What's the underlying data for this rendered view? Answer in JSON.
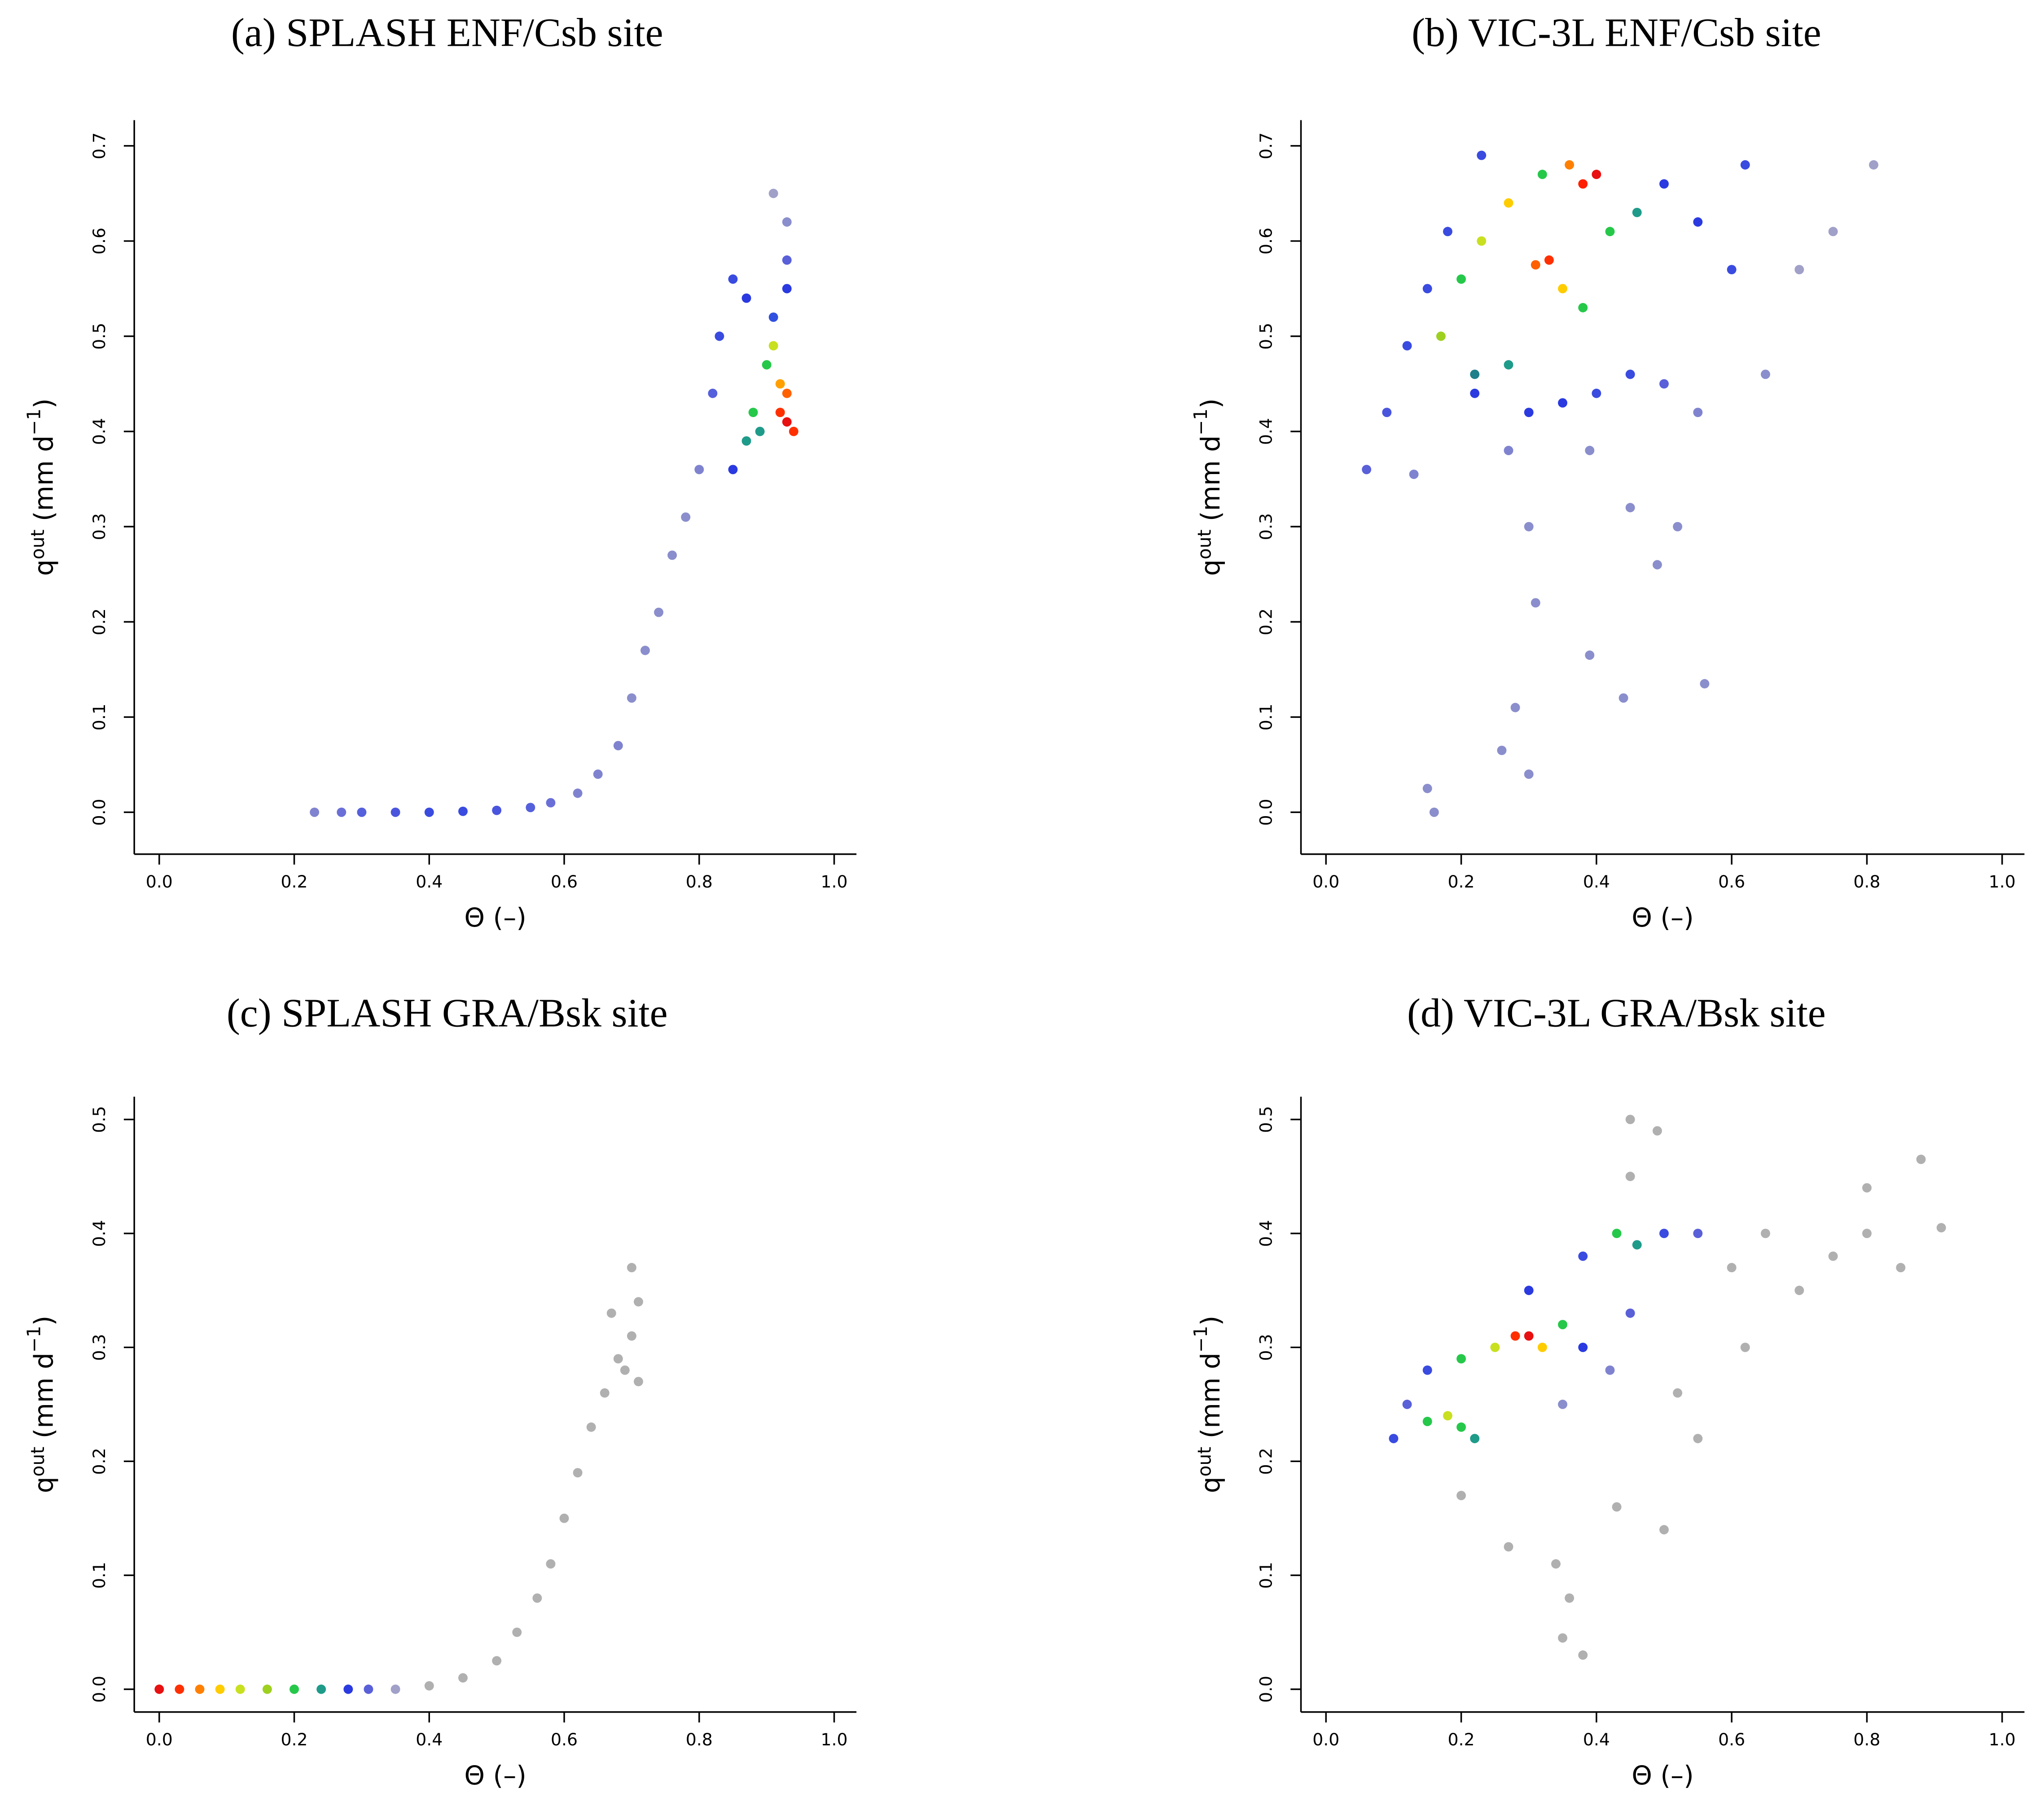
{
  "chart_data": [
    {
      "type": "scatter",
      "title": "(a) SPLASH ENF/Csb site",
      "xlabel": "Θ (–)",
      "ylabel": [
        "q",
        "out",
        " (mm d",
        "−1",
        ")"
      ],
      "xlim": [
        -0.037,
        1.033
      ],
      "ylim": [
        -0.044,
        0.727
      ],
      "xticks": [
        {
          "value": 0,
          "label": "0.0"
        },
        0.2,
        0.4,
        0.6,
        0.8,
        {
          "value": 1,
          "label": "1.0"
        }
      ],
      "yticks": [
        {
          "value": 0,
          "label": "0.0"
        },
        0.1,
        0.2,
        0.3,
        0.4,
        0.5,
        0.6,
        0.7
      ],
      "x": [
        0.23,
        0.27,
        0.3,
        0.35,
        0.4,
        0.45,
        0.5,
        0.55,
        0.58,
        0.62,
        0.65,
        0.68,
        0.7,
        0.72,
        0.74,
        0.76,
        0.78,
        0.8,
        0.82,
        0.83,
        0.85,
        0.87,
        0.85,
        0.87,
        0.88,
        0.9,
        0.91,
        0.92,
        0.92,
        0.93,
        0.93,
        0.91,
        0.93,
        0.93,
        0.91,
        0.93,
        0.89,
        0.94
      ],
      "values": [
        0,
        0,
        0,
        0,
        0,
        0.001,
        0.002,
        0.005,
        0.01,
        0.02,
        0.04,
        0.07,
        0.12,
        0.17,
        0.21,
        0.27,
        0.31,
        0.36,
        0.44,
        0.5,
        0.56,
        0.54,
        0.36,
        0.39,
        0.42,
        0.47,
        0.49,
        0.45,
        0.42,
        0.41,
        0.44,
        0.52,
        0.55,
        0.58,
        0.65,
        0.62,
        0.4,
        0.4
      ],
      "colors": [
        "#7f83cf",
        "#6a6fd8",
        "#5560dc",
        "#4a55dd",
        "#3a4be0",
        "#3a4be0",
        "#4a55dd",
        "#5560dc",
        "#6a6fd8",
        "#7f83cf",
        "#7f83cf",
        "#7f83cf",
        "#8a8ecc",
        "#8a8ecc",
        "#8a8ecc",
        "#8a8ecc",
        "#8a8ecc",
        "#7f83cf",
        "#5560dc",
        "#3a4be0",
        "#3a4be0",
        "#2a3ae0",
        "#2a3ae0",
        "#1f9b8a",
        "#26c84a",
        "#26c84a",
        "#c8e020",
        "#ffa000",
        "#ff3000",
        "#e81010",
        "#ff6000",
        "#3050e0",
        "#2a3ae0",
        "#5a60d8",
        "#a0a0c8",
        "#8a8ecc",
        "#1f9b8a",
        "#ff3000"
      ]
    },
    {
      "type": "scatter",
      "title": "(b) VIC-3L ENF/Csb site",
      "xlabel": "Θ (–)",
      "ylabel": [
        "q",
        "out",
        " (mm d",
        "−1",
        ")"
      ],
      "xlim": [
        -0.037,
        1.033
      ],
      "ylim": [
        -0.044,
        0.727
      ],
      "xticks": [
        {
          "value": 0,
          "label": "0.0"
        },
        0.2,
        0.4,
        0.6,
        0.8,
        {
          "value": 1,
          "label": "1.0"
        }
      ],
      "yticks": [
        {
          "value": 0,
          "label": "0.0"
        },
        0.1,
        0.2,
        0.3,
        0.4,
        0.5,
        0.6,
        0.7
      ],
      "x": [
        0.06,
        0.09,
        0.12,
        0.15,
        0.18,
        0.23,
        0.17,
        0.2,
        0.23,
        0.27,
        0.32,
        0.38,
        0.4,
        0.36,
        0.33,
        0.31,
        0.35,
        0.38,
        0.42,
        0.46,
        0.5,
        0.55,
        0.6,
        0.62,
        0.22,
        0.27,
        0.22,
        0.3,
        0.35,
        0.4,
        0.45,
        0.5,
        0.55,
        0.65,
        0.7,
        0.75,
        0.81,
        0.13,
        0.27,
        0.3,
        0.39,
        0.45,
        0.49,
        0.31,
        0.39,
        0.44,
        0.56,
        0.28,
        0.26,
        0.3,
        0.15,
        0.16,
        0.52
      ],
      "values": [
        0.36,
        0.42,
        0.49,
        0.55,
        0.61,
        0.69,
        0.5,
        0.56,
        0.6,
        0.64,
        0.67,
        0.66,
        0.67,
        0.68,
        0.58,
        0.575,
        0.55,
        0.53,
        0.61,
        0.63,
        0.66,
        0.62,
        0.57,
        0.68,
        0.46,
        0.47,
        0.44,
        0.42,
        0.43,
        0.44,
        0.46,
        0.45,
        0.42,
        0.46,
        0.57,
        0.61,
        0.68,
        0.355,
        0.38,
        0.3,
        0.38,
        0.32,
        0.26,
        0.22,
        0.165,
        0.12,
        0.135,
        0.11,
        0.065,
        0.04,
        0.025,
        0.0,
        0.3
      ],
      "colors": [
        "#5a60d8",
        "#4a55dd",
        "#3a4be0",
        "#3a4be0",
        "#3a4be0",
        "#3a4be0",
        "#9ed020",
        "#26c84a",
        "#c8e020",
        "#ffcc00",
        "#26c84a",
        "#ff2000",
        "#e81010",
        "#ff8000",
        "#ff3000",
        "#ff6000",
        "#ffcc00",
        "#26c84a",
        "#26c84a",
        "#1f9b8a",
        "#2a3ae0",
        "#2a3ae0",
        "#3a4be0",
        "#3a4be0",
        "#1f7f8a",
        "#1f9b8a",
        "#2a3ae0",
        "#2a3ae0",
        "#2a3ae0",
        "#3a4be0",
        "#3a4be0",
        "#5a60d8",
        "#7f83cf",
        "#8a8ecc",
        "#a0a0c8",
        "#a0a0c8",
        "#a0a0c8",
        "#7f83cf",
        "#7f83cf",
        "#8a8ecc",
        "#8a8ecc",
        "#8a8ecc",
        "#8a8ecc",
        "#8a8ecc",
        "#8a8ecc",
        "#8a8ecc",
        "#8a8ecc",
        "#8a8ecc",
        "#8a8ecc",
        "#8a8ecc",
        "#8a8ecc",
        "#8a8ecc",
        "#8a8ecc"
      ]
    },
    {
      "type": "scatter",
      "title": "(c) SPLASH GRA/Bsk site",
      "xlabel": "Θ (–)",
      "ylabel": [
        "q",
        "out",
        " (mm d",
        "−1",
        ")"
      ],
      "xlim": [
        -0.037,
        1.033
      ],
      "ylim": [
        -0.02,
        0.52
      ],
      "xticks": [
        {
          "value": 0,
          "label": "0.0"
        },
        0.2,
        0.4,
        0.6,
        0.8,
        {
          "value": 1,
          "label": "1.0"
        }
      ],
      "yticks": [
        {
          "value": 0,
          "label": "0.0"
        },
        0.1,
        0.2,
        0.3,
        0.4,
        0.5
      ],
      "x": [
        0.0,
        0.03,
        0.06,
        0.09,
        0.12,
        0.16,
        0.2,
        0.24,
        0.28,
        0.31,
        0.35,
        0.4,
        0.45,
        0.5,
        0.53,
        0.56,
        0.58,
        0.6,
        0.62,
        0.64,
        0.66,
        0.68,
        0.7,
        0.71,
        0.71,
        0.7,
        0.67,
        0.69
      ],
      "values": [
        0,
        0,
        0,
        0,
        0,
        0,
        0,
        0,
        0,
        0,
        0,
        0.003,
        0.01,
        0.025,
        0.05,
        0.08,
        0.11,
        0.15,
        0.19,
        0.23,
        0.26,
        0.29,
        0.31,
        0.27,
        0.34,
        0.37,
        0.33,
        0.28
      ],
      "colors": [
        "#e81010",
        "#ff3000",
        "#ff8000",
        "#ffcc00",
        "#c8e020",
        "#9ed020",
        "#26c84a",
        "#1f9b8a",
        "#2a3ae0",
        "#5a60d8",
        "#a0a0c8",
        "#b0b0b0",
        "#b0b0b0",
        "#b0b0b0",
        "#b0b0b0",
        "#b0b0b0",
        "#b0b0b0",
        "#b0b0b0",
        "#b0b0b0",
        "#b0b0b0",
        "#b0b0b0",
        "#b0b0b0",
        "#b0b0b0",
        "#b0b0b0",
        "#b0b0b0",
        "#b0b0b0",
        "#b0b0b0",
        "#b0b0b0"
      ]
    },
    {
      "type": "scatter",
      "title": "(d) VIC-3L GRA/Bsk site",
      "xlabel": "Θ (–)",
      "ylabel": [
        "q",
        "out",
        " (mm d",
        "−1",
        ")"
      ],
      "xlim": [
        -0.037,
        1.033
      ],
      "ylim": [
        -0.02,
        0.52
      ],
      "xticks": [
        {
          "value": 0,
          "label": "0.0"
        },
        0.2,
        0.4,
        0.6,
        0.8,
        {
          "value": 1,
          "label": "1.0"
        }
      ],
      "yticks": [
        {
          "value": 0,
          "label": "0.0"
        },
        0.1,
        0.2,
        0.3,
        0.4,
        0.5
      ],
      "x": [
        0.1,
        0.12,
        0.15,
        0.18,
        0.2,
        0.22,
        0.15,
        0.2,
        0.25,
        0.28,
        0.3,
        0.32,
        0.35,
        0.38,
        0.3,
        0.38,
        0.43,
        0.46,
        0.5,
        0.55,
        0.45,
        0.42,
        0.35,
        0.45,
        0.49,
        0.45,
        0.6,
        0.65,
        0.7,
        0.75,
        0.8,
        0.85,
        0.88,
        0.91,
        0.8,
        0.62,
        0.55,
        0.2,
        0.27,
        0.34,
        0.36,
        0.35,
        0.38,
        0.43,
        0.5,
        0.52
      ],
      "values": [
        0.22,
        0.25,
        0.235,
        0.24,
        0.23,
        0.22,
        0.28,
        0.29,
        0.3,
        0.31,
        0.31,
        0.3,
        0.32,
        0.3,
        0.35,
        0.38,
        0.4,
        0.39,
        0.4,
        0.4,
        0.33,
        0.28,
        0.25,
        0.5,
        0.49,
        0.45,
        0.37,
        0.4,
        0.35,
        0.38,
        0.4,
        0.37,
        0.465,
        0.405,
        0.44,
        0.3,
        0.22,
        0.17,
        0.125,
        0.11,
        0.08,
        0.045,
        0.03,
        0.16,
        0.14,
        0.26
      ],
      "colors": [
        "#3a4be0",
        "#5a60d8",
        "#26c84a",
        "#c8e020",
        "#26c84a",
        "#1f9b8a",
        "#3a4be0",
        "#26c84a",
        "#c8e020",
        "#ff3000",
        "#e81010",
        "#ffcc00",
        "#26c84a",
        "#2a3ae0",
        "#2a3ae0",
        "#3a4be0",
        "#26c84a",
        "#1f9b8a",
        "#3a4be0",
        "#5a60d8",
        "#5a60d8",
        "#7f83cf",
        "#8a8ecc",
        "#b0b0b0",
        "#b0b0b0",
        "#b0b0b0",
        "#b0b0b0",
        "#b0b0b0",
        "#b0b0b0",
        "#b0b0b0",
        "#b0b0b0",
        "#b0b0b0",
        "#b0b0b0",
        "#b0b0b0",
        "#b0b0b0",
        "#b0b0b0",
        "#b0b0b0",
        "#b0b0b0",
        "#b0b0b0",
        "#b0b0b0",
        "#b0b0b0",
        "#b0b0b0",
        "#b0b0b0",
        "#b0b0b0",
        "#b0b0b0",
        "#b0b0b0"
      ]
    }
  ]
}
